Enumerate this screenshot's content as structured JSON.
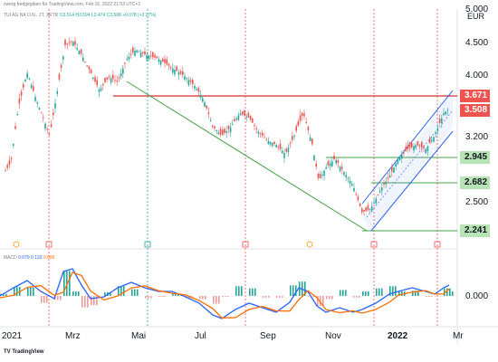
{
  "header": {
    "caption": "zwerg fredgegiben für TradingView.com, Feb 16, 2022 21:53 UTC+1",
    "ohlc_label": "TUI AG NA O.N., 1T, XETR",
    "o": "O3.514",
    "h": "H3.594",
    "l": "L3.474",
    "c": "C3.508",
    "chg": "+0.078 (+2.27%)"
  },
  "currency": "EUR",
  "y_ticks": [
    "5.000",
    "4.500",
    "4.000",
    "3.200",
    "2.500"
  ],
  "badges": {
    "r1": "3.671",
    "r2": "3.508",
    "g1": "2.945",
    "g2": "2.682",
    "g3": "2.241"
  },
  "macd": {
    "label": "MACD",
    "vals": "0.079 0.133",
    "val3": "0.096",
    "zero": "0.000"
  },
  "x_ticks": [
    "2021",
    "Mrz",
    "Mai",
    "Jul",
    "Sep",
    "Nov",
    "2022",
    "Mr"
  ],
  "footer": "TV TradingView",
  "colors": {
    "up": "#26a69a",
    "down": "#ef5350",
    "macd": "#2962ff",
    "signal": "#ff6d00",
    "support": "#43a047",
    "resistance": "#d32f2f",
    "channel": "#2962ff"
  }
}
